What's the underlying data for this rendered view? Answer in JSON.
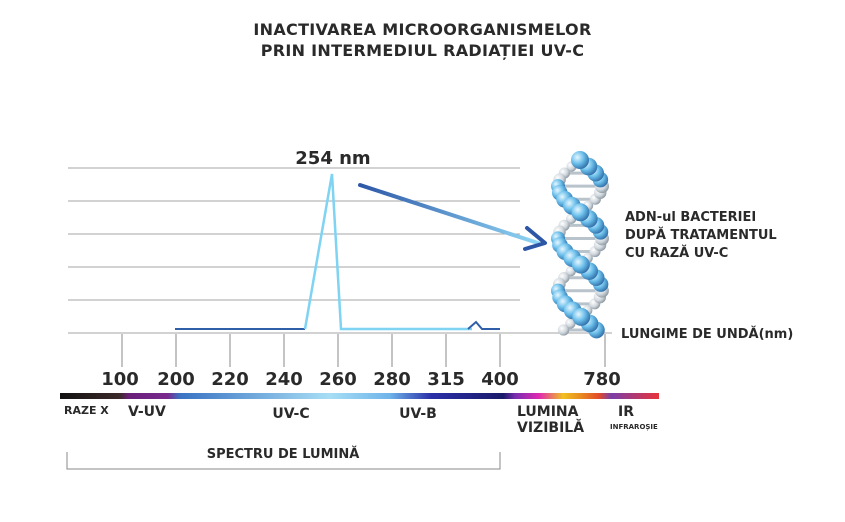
{
  "title": {
    "line1": "INACTIVAREA MICROORGANISMELOR",
    "line2": "PRIN INTERMEDIUL RADIAȚIEI UV-C"
  },
  "peak_label": "254 nm",
  "axis_label": "LUNGIME DE UNDĂ(nm)",
  "dna_caption": [
    "ADN-ul BACTERIEI",
    "DUPĂ TRATAMENTUL",
    "CU RAZĂ UV-C"
  ],
  "ticks": [
    "100",
    "200",
    "220",
    "240",
    "260",
    "280",
    "315",
    "400",
    "780"
  ],
  "bands": {
    "razex": "RAZE X",
    "vuv": "V-UV",
    "uvc": "UV-C",
    "uvb": "UV-B",
    "lumina1": "LUMINA",
    "lumina2": "VIZIBILĂ",
    "ir": "IR",
    "infrarosie": "INFRAROȘIE"
  },
  "spectrum_label": "SPECTRU DE LUMINĂ",
  "colors": {
    "peak_line": "#7fd3f3",
    "baseline": "#2f5fa8",
    "arrow_start": "#2d57a6",
    "arrow_end": "#8fd6f5",
    "grid": "#a6a6a6"
  }
}
